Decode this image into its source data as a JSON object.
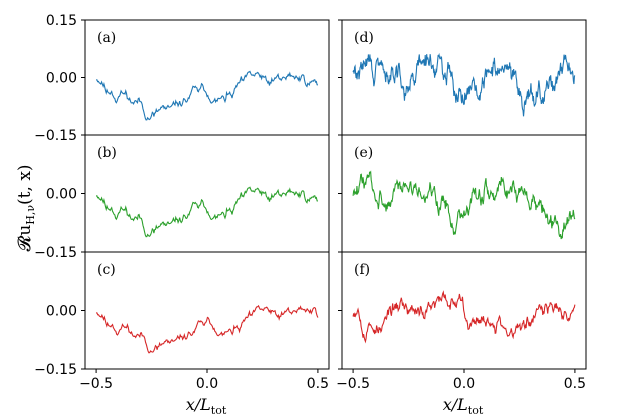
{
  "chart_data": {
    "type": "line",
    "ylabel": "𝓡u",
    "ylabel_sub": "H,ν",
    "ylabel_args": "(t, x)",
    "xlabel_main": "x/L",
    "xlabel_sub": "tot",
    "xlim": [
      -0.55,
      0.55
    ],
    "ylim": [
      -0.15,
      0.15
    ],
    "x_ticks": [
      -0.5,
      0.0,
      0.5
    ],
    "x_tick_labels": [
      "−0.5",
      "0.0",
      "0.5"
    ],
    "y_ticks": [
      0.15,
      0.0,
      -0.15
    ],
    "y_tick_labels": [
      "0.15",
      "0.00",
      "−0.15"
    ],
    "panels": [
      {
        "label": "(a)",
        "color": "#1f77b4",
        "x_start": -0.5,
        "x_end": 0.5,
        "roughness": 0.35,
        "seed": 11
      },
      {
        "label": "(b)",
        "color": "#2ca02c",
        "x_start": -0.5,
        "x_end": 0.5,
        "roughness": 0.35,
        "seed": 11
      },
      {
        "label": "(c)",
        "color": "#d62728",
        "x_start": -0.5,
        "x_end": 0.5,
        "roughness": 0.3,
        "seed": 11
      },
      {
        "label": "(d)",
        "color": "#1f77b4",
        "x_start": -0.5,
        "x_end": 0.5,
        "roughness": 0.9,
        "seed": 29
      },
      {
        "label": "(e)",
        "color": "#2ca02c",
        "x_start": -0.5,
        "x_end": 0.5,
        "roughness": 0.75,
        "seed": 47
      },
      {
        "label": "(f)",
        "color": "#d62728",
        "x_start": -0.5,
        "x_end": 0.5,
        "roughness": 0.6,
        "seed": 53
      }
    ]
  }
}
